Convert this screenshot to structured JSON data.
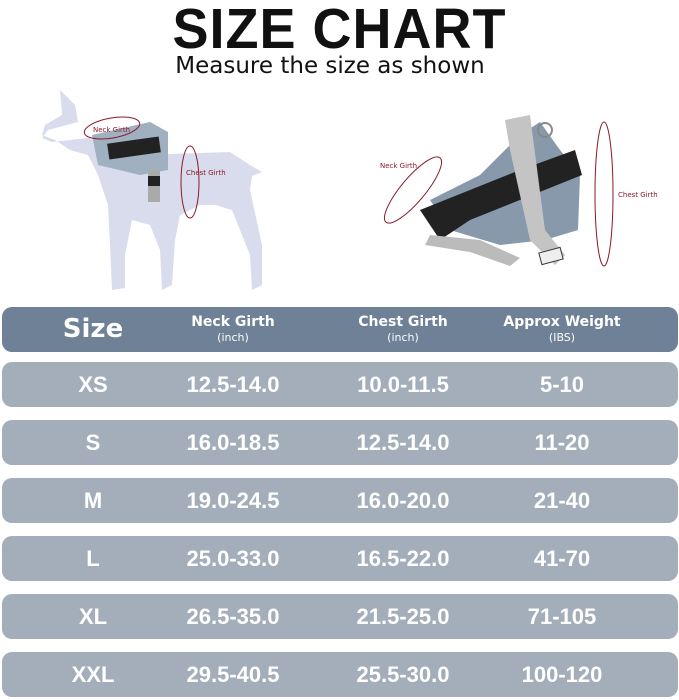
{
  "title": "SIZE CHART",
  "subtitle": "Measure the size as shown",
  "illustration": {
    "neck_label": "Neck Girth",
    "chest_label": "Chest Girth",
    "colors": {
      "dog": "#d9dcec",
      "marker": "#8a1a2a",
      "harness": "#7e93a8"
    }
  },
  "table": {
    "colors": {
      "header": "#6e8196",
      "row": "#a4aebb",
      "text": "#ffffff"
    },
    "headers": [
      {
        "label": "Size",
        "unit": ""
      },
      {
        "label": "Neck Girth",
        "unit": "(inch)"
      },
      {
        "label": "Chest Girth",
        "unit": "(inch)"
      },
      {
        "label": "Approx Weight",
        "unit": "(IBS)"
      }
    ],
    "rows": [
      [
        "XS",
        "12.5-14.0",
        "10.0-11.5",
        "5-10"
      ],
      [
        "S",
        "16.0-18.5",
        "12.5-14.0",
        "11-20"
      ],
      [
        "M",
        "19.0-24.5",
        "16.0-20.0",
        "21-40"
      ],
      [
        "L",
        "25.0-33.0",
        "16.5-22.0",
        "41-70"
      ],
      [
        "XL",
        "26.5-35.0",
        "21.5-25.0",
        "71-105"
      ],
      [
        "XXL",
        "29.5-40.5",
        "25.5-30.0",
        "100-120"
      ]
    ]
  }
}
